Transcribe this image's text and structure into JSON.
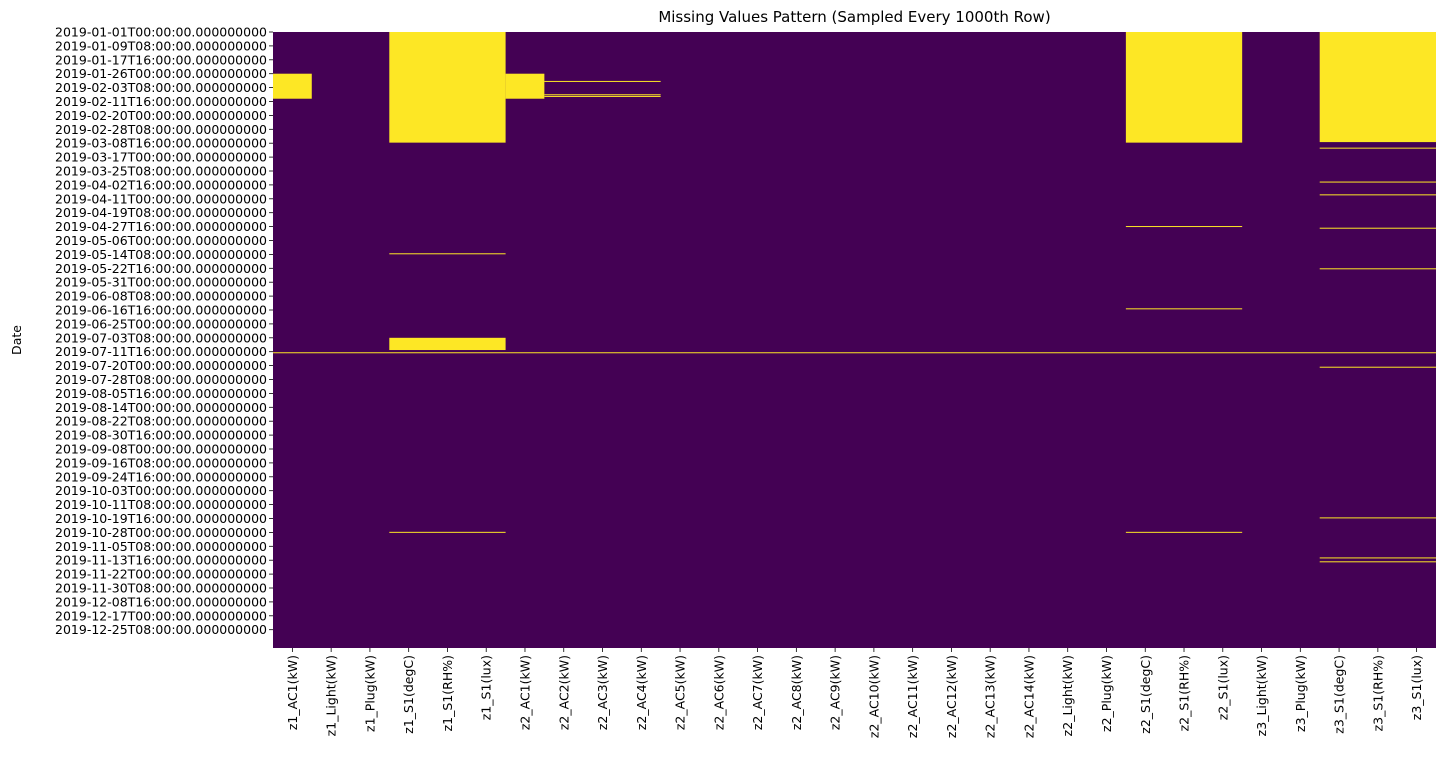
{
  "chart_data": {
    "type": "heatmap",
    "title": "Missing Values Pattern (Sampled Every 1000th Row)",
    "ylabel": "Date",
    "xlabel": "",
    "colors": {
      "present": "#440154",
      "missing": "#fde725"
    },
    "grid": false,
    "legend": "none",
    "y_tick_labels": [
      "2019-01-01T00:00:00.000000000",
      "2019-01-09T08:00:00.000000000",
      "2019-01-17T16:00:00.000000000",
      "2019-01-26T00:00:00.000000000",
      "2019-02-03T08:00:00.000000000",
      "2019-02-11T16:00:00.000000000",
      "2019-02-20T00:00:00.000000000",
      "2019-02-28T08:00:00.000000000",
      "2019-03-08T16:00:00.000000000",
      "2019-03-17T00:00:00.000000000",
      "2019-03-25T08:00:00.000000000",
      "2019-04-02T16:00:00.000000000",
      "2019-04-11T00:00:00.000000000",
      "2019-04-19T08:00:00.000000000",
      "2019-04-27T16:00:00.000000000",
      "2019-05-06T00:00:00.000000000",
      "2019-05-14T08:00:00.000000000",
      "2019-05-22T16:00:00.000000000",
      "2019-05-31T00:00:00.000000000",
      "2019-06-08T08:00:00.000000000",
      "2019-06-16T16:00:00.000000000",
      "2019-06-25T00:00:00.000000000",
      "2019-07-03T08:00:00.000000000",
      "2019-07-11T16:00:00.000000000",
      "2019-07-20T00:00:00.000000000",
      "2019-07-28T08:00:00.000000000",
      "2019-08-05T16:00:00.000000000",
      "2019-08-14T00:00:00.000000000",
      "2019-08-22T08:00:00.000000000",
      "2019-08-30T16:00:00.000000000",
      "2019-09-08T00:00:00.000000000",
      "2019-09-16T08:00:00.000000000",
      "2019-09-24T16:00:00.000000000",
      "2019-10-03T00:00:00.000000000",
      "2019-10-11T08:00:00.000000000",
      "2019-10-19T16:00:00.000000000",
      "2019-10-28T00:00:00.000000000",
      "2019-11-05T08:00:00.000000000",
      "2019-11-13T16:00:00.000000000",
      "2019-11-22T00:00:00.000000000",
      "2019-11-30T08:00:00.000000000",
      "2019-12-08T16:00:00.000000000",
      "2019-12-17T00:00:00.000000000",
      "2019-12-25T08:00:00.000000000"
    ],
    "columns": [
      "z1_AC1(kW)",
      "z1_Light(kW)",
      "z1_Plug(kW)",
      "z1_S1(degC)",
      "z1_S1(RH%)",
      "z1_S1(lux)",
      "z2_AC1(kW)",
      "z2_AC2(kW)",
      "z2_AC3(kW)",
      "z2_AC4(kW)",
      "z2_AC5(kW)",
      "z2_AC6(kW)",
      "z2_AC7(kW)",
      "z2_AC8(kW)",
      "z2_AC9(kW)",
      "z2_AC10(kW)",
      "z2_AC11(kW)",
      "z2_AC12(kW)",
      "z2_AC13(kW)",
      "z2_AC14(kW)",
      "z2_Light(kW)",
      "z2_Plug(kW)",
      "z2_S1(degC)",
      "z2_S1(RH%)",
      "z2_S1(lux)",
      "z3_Light(kW)",
      "z3_Plug(kW)",
      "z3_S1(degC)",
      "z3_S1(RH%)",
      "z3_S1(lux)"
    ],
    "missing_ranges": [
      {
        "columns": [
          0,
          0
        ],
        "from": "2019-01-26T00:00:00",
        "to": "2019-02-10T00:00:00"
      },
      {
        "columns": [
          3,
          5
        ],
        "from": "2019-01-01T00:00:00",
        "to": "2019-03-08T08:00:00"
      },
      {
        "columns": [
          3,
          5
        ],
        "from": "2019-05-13T16:00:00",
        "to": "2019-05-14T00:00:00"
      },
      {
        "columns": [
          3,
          5
        ],
        "from": "2019-07-03T08:00:00",
        "to": "2019-07-10T16:00:00"
      },
      {
        "columns": [
          3,
          5
        ],
        "from": "2019-10-27T16:00:00",
        "to": "2019-10-28T00:00:00"
      },
      {
        "columns": [
          6,
          6
        ],
        "from": "2019-01-26T00:00:00",
        "to": "2019-02-10T00:00:00"
      },
      {
        "columns": [
          7,
          9
        ],
        "from": "2019-01-30T08:00:00",
        "to": "2019-01-30T16:00:00"
      },
      {
        "columns": [
          7,
          9
        ],
        "from": "2019-02-07T08:00:00",
        "to": "2019-02-07T16:00:00"
      },
      {
        "columns": [
          7,
          9
        ],
        "from": "2019-02-08T08:00:00",
        "to": "2019-02-08T16:00:00"
      },
      {
        "columns": [
          0,
          29
        ],
        "from": "2019-07-12T00:00:00",
        "to": "2019-07-12T08:00:00"
      },
      {
        "columns": [
          22,
          24
        ],
        "from": "2019-01-01T00:00:00",
        "to": "2019-03-08T08:00:00"
      },
      {
        "columns": [
          22,
          24
        ],
        "from": "2019-04-27T08:00:00",
        "to": "2019-04-27T16:00:00"
      },
      {
        "columns": [
          22,
          24
        ],
        "from": "2019-06-15T16:00:00",
        "to": "2019-06-16T00:00:00"
      },
      {
        "columns": [
          22,
          24
        ],
        "from": "2019-10-27T16:00:00",
        "to": "2019-10-28T00:00:00"
      },
      {
        "columns": [
          27,
          29
        ],
        "from": "2019-01-01T00:00:00",
        "to": "2019-03-08T00:00:00"
      },
      {
        "columns": [
          27,
          29
        ],
        "from": "2019-03-11T08:00:00",
        "to": "2019-03-11T16:00:00"
      },
      {
        "columns": [
          27,
          29
        ],
        "from": "2019-03-31T16:00:00",
        "to": "2019-04-01T00:00:00"
      },
      {
        "columns": [
          27,
          29
        ],
        "from": "2019-04-08T08:00:00",
        "to": "2019-04-08T16:00:00"
      },
      {
        "columns": [
          27,
          29
        ],
        "from": "2019-04-28T08:00:00",
        "to": "2019-04-28T16:00:00"
      },
      {
        "columns": [
          27,
          29
        ],
        "from": "2019-05-22T16:00:00",
        "to": "2019-05-23T00:00:00"
      },
      {
        "columns": [
          27,
          29
        ],
        "from": "2019-07-20T16:00:00",
        "to": "2019-07-21T00:00:00"
      },
      {
        "columns": [
          27,
          29
        ],
        "from": "2019-10-19T00:00:00",
        "to": "2019-10-19T08:00:00"
      },
      {
        "columns": [
          27,
          29
        ],
        "from": "2019-11-12T00:00:00",
        "to": "2019-11-12T08:00:00"
      },
      {
        "columns": [
          27,
          29
        ],
        "from": "2019-11-14T08:00:00",
        "to": "2019-11-14T16:00:00"
      }
    ]
  }
}
